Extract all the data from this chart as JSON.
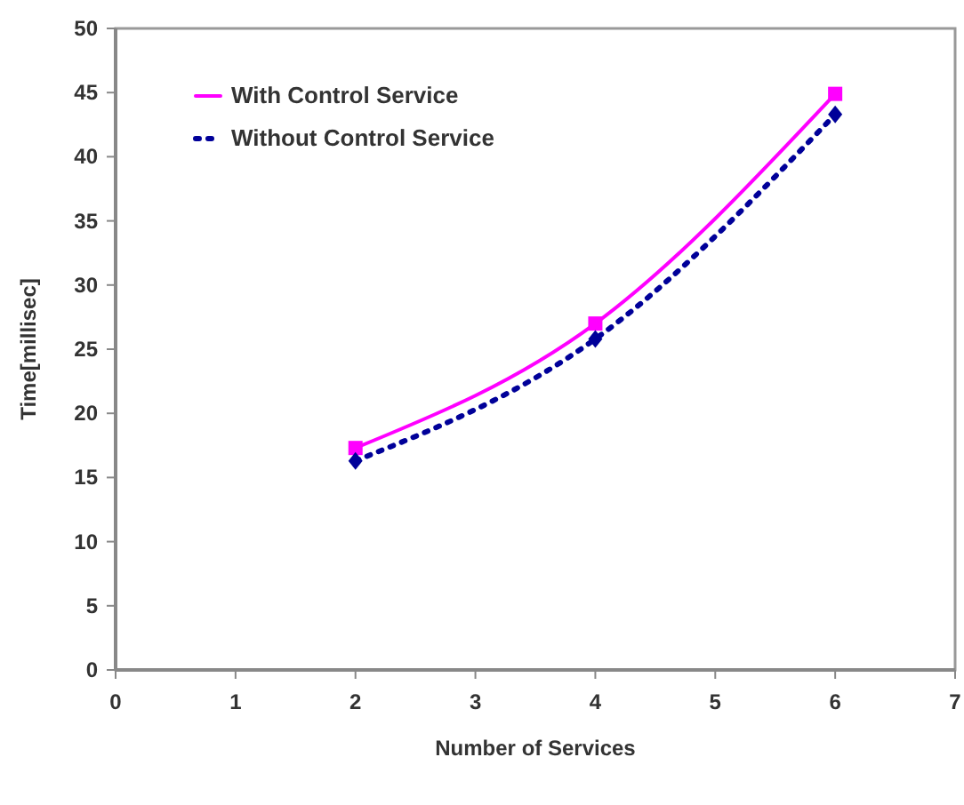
{
  "chart_data": {
    "type": "line",
    "xlabel": "Number of Services",
    "ylabel": "Time[millisec]",
    "xlim": [
      0,
      7
    ],
    "xticks": [
      0,
      1,
      2,
      3,
      4,
      5,
      6,
      7
    ],
    "ylim": [
      0,
      50
    ],
    "yticks": [
      0,
      5,
      10,
      15,
      20,
      25,
      30,
      35,
      40,
      45,
      50
    ],
    "grid": false,
    "legend": "top left",
    "series": [
      {
        "name": "With Control Service",
        "color": "#ff00ff",
        "x": [
          2,
          4,
          6
        ],
        "values": [
          17.3,
          27.0,
          44.9
        ],
        "marker": "square",
        "line_style": "solid"
      },
      {
        "name": "Without Control Service",
        "color": "#000099",
        "x": [
          2,
          4,
          6
        ],
        "values": [
          16.3,
          25.8,
          43.3
        ],
        "marker": "diamond",
        "line_style": "dotted"
      }
    ]
  }
}
